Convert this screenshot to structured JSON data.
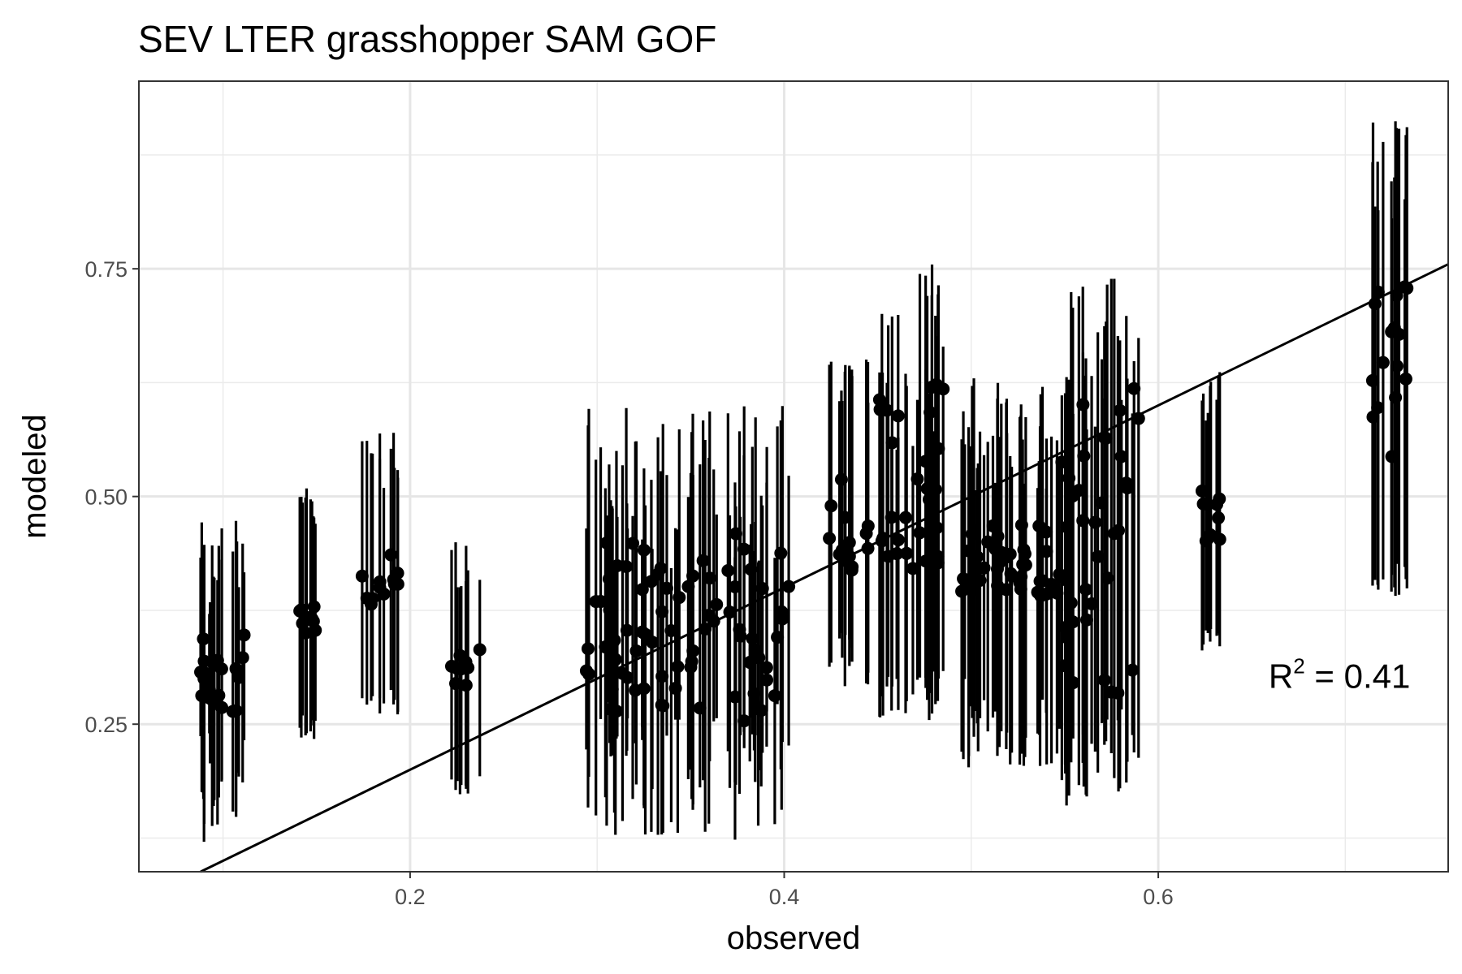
{
  "chart_data": {
    "type": "scatter",
    "title": "SEV LTER grasshopper SAM GOF",
    "xlabel": "observed",
    "ylabel": "modeled",
    "xlim": [
      0.055,
      0.755
    ],
    "ylim": [
      0.088,
      0.956
    ],
    "x_ticks": [
      0.2,
      0.4,
      0.6
    ],
    "x_tick_labels": [
      "0.2",
      "0.4",
      "0.6"
    ],
    "y_ticks": [
      0.25,
      0.5,
      0.75
    ],
    "y_tick_labels": [
      "0.25",
      "0.50",
      "0.75"
    ],
    "x_minor_ticks": [
      0.1,
      0.3,
      0.5,
      0.7
    ],
    "y_minor_ticks": [
      0.125,
      0.375,
      0.625,
      0.875
    ],
    "grid": true,
    "theme": "black-and-white",
    "point_color": "#000000",
    "errorbar_color": "#000000",
    "reference_line": {
      "type": "one-to-one",
      "intercept": 0,
      "slope": 1,
      "color": "#000000"
    },
    "annotation": {
      "base": "R",
      "sup": "2",
      "rest": " = 0.41",
      "at": [
        0.659,
        0.29
      ]
    },
    "groups": [
      {
        "x": [
          0.088,
          0.112
        ],
        "n": 22,
        "mean": [
          0.25,
          0.35
        ],
        "lo": [
          0.12,
          0.24
        ],
        "hi": [
          0.36,
          0.48
        ],
        "seed": 11
      },
      {
        "x": [
          0.141,
          0.153
        ],
        "n": 10,
        "mean": [
          0.35,
          0.38
        ],
        "lo": [
          0.23,
          0.26
        ],
        "hi": [
          0.47,
          0.51
        ],
        "seed": 12
      },
      {
        "x": [
          0.174,
          0.195
        ],
        "n": 12,
        "mean": [
          0.38,
          0.44
        ],
        "lo": [
          0.26,
          0.29
        ],
        "hi": [
          0.5,
          0.57
        ],
        "seed": 13
      },
      {
        "x": [
          0.222,
          0.238
        ],
        "n": 9,
        "mean": [
          0.29,
          0.34
        ],
        "lo": [
          0.17,
          0.2
        ],
        "hi": [
          0.4,
          0.46
        ],
        "seed": 14
      },
      {
        "x": [
          0.294,
          0.403
        ],
        "n": 80,
        "mean": [
          0.25,
          0.46
        ],
        "lo": [
          0.12,
          0.28
        ],
        "hi": [
          0.42,
          0.6
        ],
        "seed": 15
      },
      {
        "x": [
          0.423,
          0.445
        ],
        "n": 14,
        "mean": [
          0.41,
          0.52
        ],
        "lo": [
          0.29,
          0.35
        ],
        "hi": [
          0.6,
          0.66
        ],
        "seed": 16
      },
      {
        "x": [
          0.45,
          0.486
        ],
        "n": 32,
        "mean": [
          0.42,
          0.63
        ],
        "lo": [
          0.25,
          0.31
        ],
        "hi": [
          0.55,
          0.76
        ],
        "seed": 17
      },
      {
        "x": [
          0.492,
          0.548
        ],
        "n": 48,
        "mean": [
          0.39,
          0.47
        ],
        "lo": [
          0.2,
          0.3
        ],
        "hi": [
          0.5,
          0.63
        ],
        "seed": 18
      },
      {
        "x": [
          0.548,
          0.59
        ],
        "n": 36,
        "mean": [
          0.28,
          0.62
        ],
        "lo": [
          0.16,
          0.27
        ],
        "hi": [
          0.56,
          0.75
        ],
        "seed": 19
      },
      {
        "x": [
          0.62,
          0.633
        ],
        "n": 10,
        "mean": [
          0.45,
          0.51
        ],
        "lo": [
          0.33,
          0.36
        ],
        "hi": [
          0.57,
          0.64
        ],
        "seed": 20
      },
      {
        "x": [
          0.713,
          0.733
        ],
        "n": 16,
        "mean": [
          0.52,
          0.74
        ],
        "lo": [
          0.39,
          0.43
        ],
        "hi": [
          0.8,
          0.92
        ],
        "seed": 21
      }
    ]
  }
}
